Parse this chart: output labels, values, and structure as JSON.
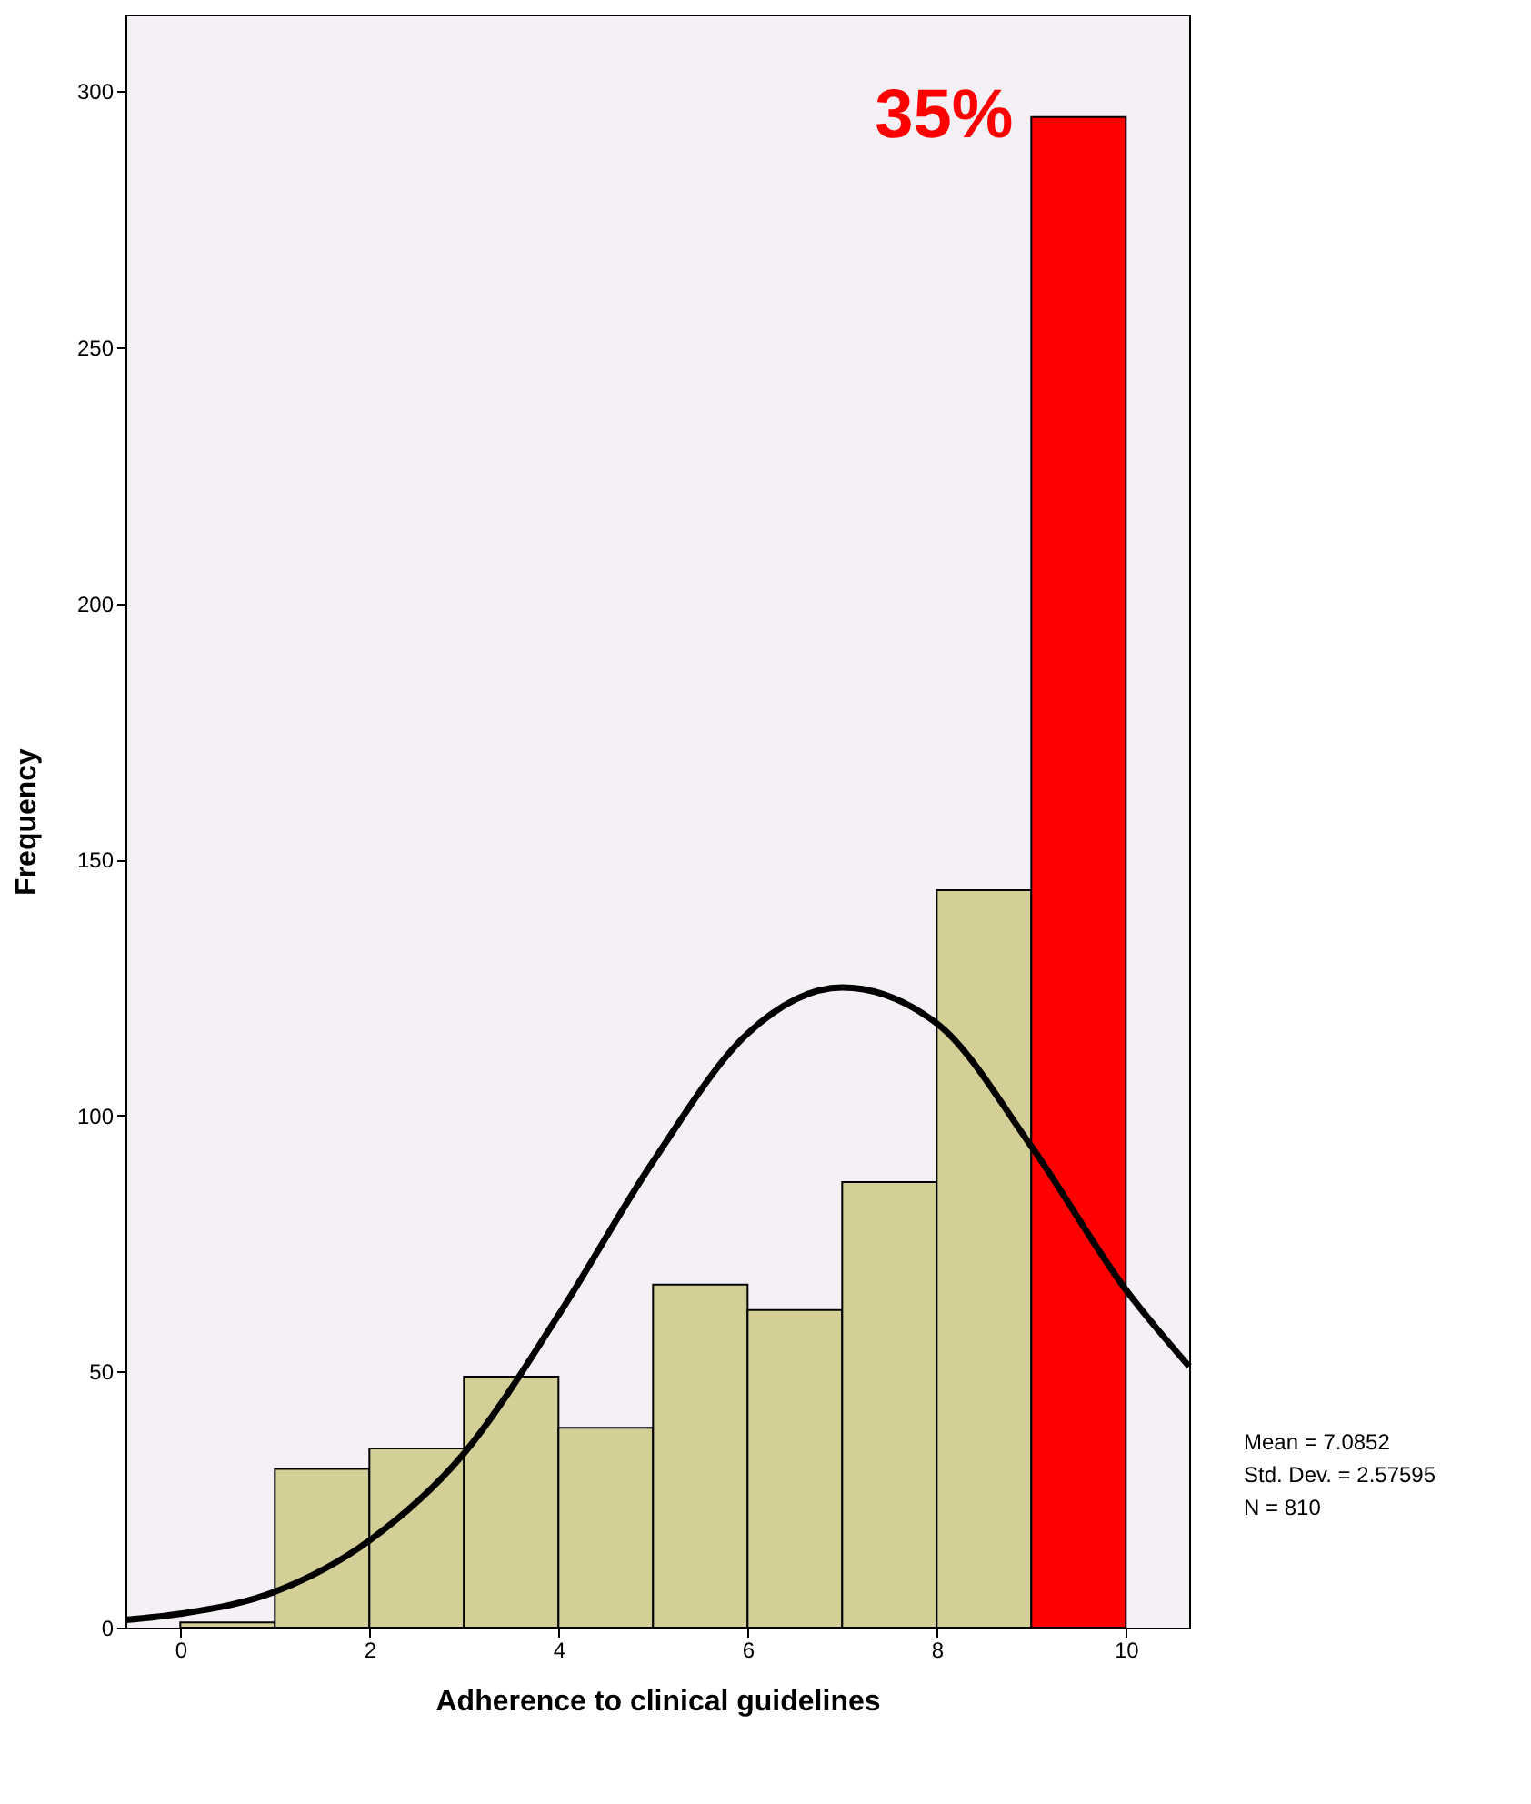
{
  "chart_data": {
    "type": "histogram",
    "xlabel": "Adherence to clinical guidelines",
    "ylabel": "Frequency",
    "bins": [
      0,
      1,
      2,
      3,
      4,
      5,
      6,
      7,
      8,
      9,
      10
    ],
    "values": [
      1,
      31,
      35,
      49,
      39,
      67,
      62,
      87,
      144,
      295
    ],
    "colors": [
      "#d4cf96",
      "#d4cf96",
      "#d4cf96",
      "#d4cf96",
      "#d4cf96",
      "#d4cf96",
      "#d4cf96",
      "#d4cf96",
      "#d4cf96",
      "#ff0000"
    ],
    "series": [
      {
        "type": "line",
        "color": "#000000",
        "x": [
          -0.58,
          0,
          1,
          2,
          3,
          4,
          5,
          6,
          7,
          8,
          9,
          10,
          10.67
        ],
        "values": [
          1.5,
          2.7,
          7,
          17,
          34,
          61,
          91,
          116,
          125,
          118,
          94,
          66,
          51
        ]
      }
    ],
    "xlim": [
      -0.58,
      10.67
    ],
    "xticks": [
      0,
      2,
      4,
      6,
      8,
      10
    ],
    "ylim": [
      0,
      315
    ],
    "yticks": [
      0,
      50,
      100,
      150,
      200,
      250,
      300
    ],
    "grid": false,
    "annotations": [
      {
        "text": "35%",
        "x": 9.5,
        "y": 295
      },
      "Mean = 7.0852",
      "Std. Dev. = 2.57595",
      "N = 810"
    ]
  }
}
